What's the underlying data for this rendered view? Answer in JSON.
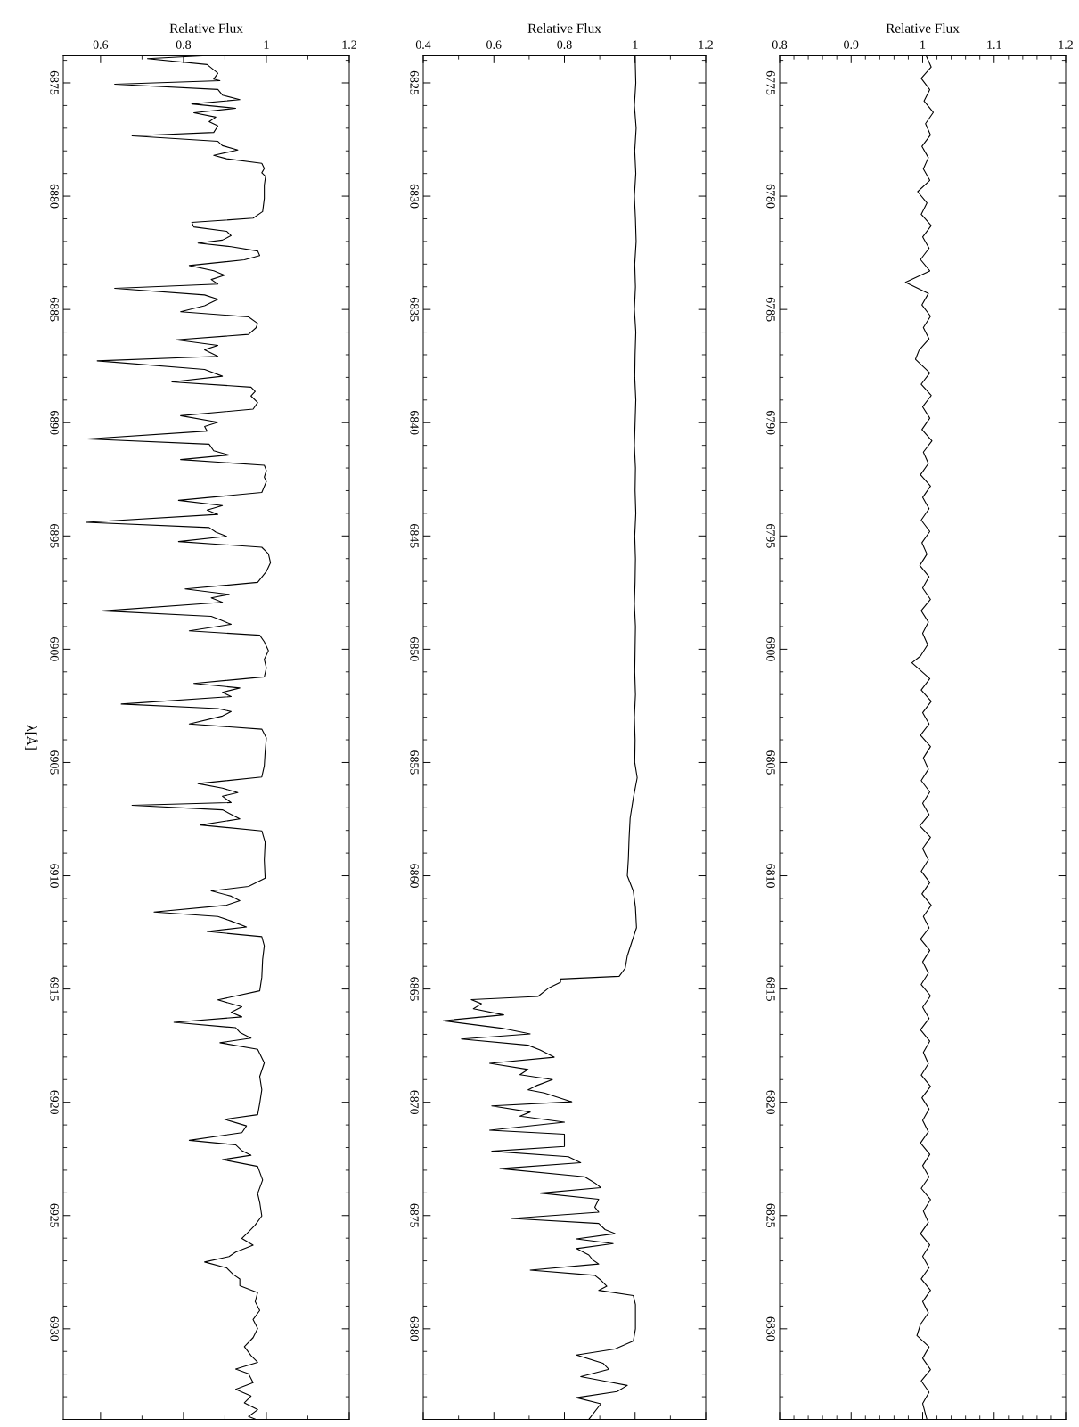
{
  "chart_data": [
    {
      "type": "line",
      "orientation": "horizontal",
      "xlabel": "Relative Flux",
      "ylabel": "λ[Å]",
      "xlim": [
        0.51,
        1.2
      ],
      "ylim": [
        6934,
        6873.8
      ],
      "xticks": [
        0.6,
        {
          "value": 0.7,
          "label": null
        },
        0.8,
        {
          "value": 0.9,
          "label": null
        },
        1,
        {
          "value": 1.1,
          "label": null
        },
        1.2
      ],
      "yticks": [
        {
          "value": 6874,
          "label": null
        },
        6875,
        {
          "value": 6876,
          "label": null
        },
        {
          "value": 6877,
          "label": null
        },
        {
          "value": 6878,
          "label": null
        },
        {
          "value": 6879,
          "label": null
        },
        6880,
        {
          "value": 6881,
          "label": null
        },
        {
          "value": 6882,
          "label": null
        },
        {
          "value": 6883,
          "label": null
        },
        {
          "value": 6884,
          "label": null
        },
        6885,
        {
          "value": 6886,
          "label": null
        },
        {
          "value": 6887,
          "label": null
        },
        {
          "value": 6888,
          "label": null
        },
        {
          "value": 6889,
          "label": null
        },
        6890,
        {
          "value": 6891,
          "label": null
        },
        {
          "value": 6892,
          "label": null
        },
        {
          "value": 6893,
          "label": null
        },
        {
          "value": 6894,
          "label": null
        },
        6895,
        {
          "value": 6896,
          "label": null
        },
        {
          "value": 6897,
          "label": null
        },
        {
          "value": 6898,
          "label": null
        },
        {
          "value": 6899,
          "label": null
        },
        6900,
        {
          "value": 6901,
          "label": null
        },
        {
          "value": 6902,
          "label": null
        },
        {
          "value": 6903,
          "label": null
        },
        {
          "value": 6904,
          "label": null
        },
        6905,
        {
          "value": 6906,
          "label": null
        },
        {
          "value": 6907,
          "label": null
        },
        {
          "value": 6908,
          "label": null
        },
        {
          "value": 6909,
          "label": null
        },
        6910,
        {
          "value": 6911,
          "label": null
        },
        {
          "value": 6912,
          "label": null
        },
        {
          "value": 6913,
          "label": null
        },
        {
          "value": 6914,
          "label": null
        },
        6915,
        {
          "value": 6916,
          "label": null
        },
        {
          "value": 6917,
          "label": null
        },
        {
          "value": 6918,
          "label": null
        },
        {
          "value": 6919,
          "label": null
        },
        6920,
        {
          "value": 6921,
          "label": null
        },
        {
          "value": 6922,
          "label": null
        },
        {
          "value": 6923,
          "label": null
        },
        {
          "value": 6924,
          "label": null
        },
        6925,
        {
          "value": 6926,
          "label": null
        },
        {
          "value": 6927,
          "label": null
        },
        {
          "value": 6928,
          "label": null
        },
        {
          "value": 6929,
          "label": null
        },
        6930,
        {
          "value": 6931,
          "label": null
        },
        {
          "value": 6932,
          "label": null
        },
        {
          "value": 6933,
          "label": null
        }
      ],
      "series": [
        {
          "color": "#000000",
          "x": [
            6873.8,
            6873.93,
            6874.19,
            6874.57,
            6874.83,
            6874.9,
            6875.06,
            6875.29,
            6875.54,
            6875.74,
            6875.93,
            6876.12,
            6876.32,
            6876.51,
            6876.71,
            6876.9,
            6877.19,
            6877.34,
            6877.58,
            6877.77,
            6877.96,
            6878.2,
            6878.35,
            6878.55,
            6878.78,
            6878.97,
            6879.13,
            6879.52,
            6880.1,
            6880.68,
            6880.97,
            6881.16,
            6881.36,
            6881.55,
            6881.74,
            6881.94,
            6882.07,
            6882.23,
            6882.42,
            6882.62,
            6882.81,
            6883.06,
            6883.29,
            6883.49,
            6883.68,
            6883.88,
            6884.07,
            6884.36,
            6884.55,
            6884.84,
            6885.1,
            6885.33,
            6885.62,
            6885.81,
            6886.1,
            6886.34,
            6886.59,
            6886.78,
            6887.07,
            6887.27,
            6887.65,
            6887.95,
            6888.2,
            6888.43,
            6888.62,
            6888.82,
            6889.11,
            6889.4,
            6889.69,
            6889.98,
            6890.17,
            6890.37,
            6890.72,
            6890.95,
            6891.24,
            6891.43,
            6891.63,
            6891.88,
            6892.11,
            6892.4,
            6892.6,
            6893.08,
            6893.43,
            6893.66,
            6893.86,
            6894.05,
            6894.4,
            6894.63,
            6894.83,
            6895.02,
            6895.25,
            6895.5,
            6895.79,
            6896.18,
            6896.57,
            6897.05,
            6897.34,
            6897.58,
            6897.73,
            6897.93,
            6898.31,
            6898.55,
            6898.7,
            6898.9,
            6899.19,
            6899.38,
            6899.67,
            6900.06,
            6900.45,
            6900.83,
            6901.22,
            6901.51,
            6901.71,
            6901.9,
            6902.09,
            6902.42,
            6902.62,
            6902.75,
            6902.95,
            6903.3,
            6903.53,
            6903.92,
            6904.54,
            6905.14,
            6905.64,
            6905.93,
            6906.13,
            6906.33,
            6906.49,
            6906.77,
            6906.89,
            6907.09,
            6907.29,
            6907.49,
            6907.76,
            6908.02,
            6908.52,
            6909.31,
            6910.11,
            6910.47,
            6910.67,
            6910.9,
            6911.1,
            6911.3,
            6911.6,
            6911.8,
            6912.0,
            6912.26,
            6912.46,
            6912.69,
            6913.09,
            6913.69,
            6914.48,
            6915.08,
            6915.48,
            6915.78,
            6916.03,
            6916.23,
            6916.47,
            6916.71,
            6916.91,
            6917.17,
            6917.37,
            6917.66,
            6918.26,
            6918.86,
            6919.45,
            6920.05,
            6920.55,
            6920.75,
            6921.04,
            6921.34,
            6921.68,
            6921.88,
            6922.14,
            6922.34,
            6922.53,
            6922.83,
            6923.43,
            6924.03,
            6924.42,
            6925.02,
            6925.42,
            6925.72,
            6926.01,
            6926.31,
            6926.61,
            6926.81,
            6927.05,
            6927.31,
            6927.6,
            6927.8,
            6928.1,
            6928.4,
            6928.8,
            6929.19,
            6929.59,
            6929.99,
            6930.39,
            6930.79,
            6931.18,
            6931.48,
            6931.78,
            6931.98,
            6932.38,
            6932.67,
            6932.97,
            6933.27,
            6933.57,
            6933.87,
            6934.0
          ],
          "values": [
            0.846,
            0.713,
            0.857,
            0.883,
            0.873,
            0.888,
            0.634,
            0.883,
            0.894,
            0.936,
            0.82,
            0.926,
            0.825,
            0.878,
            0.862,
            0.883,
            0.873,
            0.676,
            0.883,
            0.894,
            0.931,
            0.873,
            0.904,
            0.989,
            0.995,
            0.989,
            0.998,
            0.995,
            0.995,
            0.991,
            0.968,
            0.82,
            0.825,
            0.904,
            0.915,
            0.894,
            0.835,
            0.915,
            0.979,
            0.984,
            0.947,
            0.814,
            0.873,
            0.899,
            0.867,
            0.883,
            0.634,
            0.851,
            0.883,
            0.851,
            0.793,
            0.957,
            0.979,
            0.975,
            0.957,
            0.782,
            0.883,
            0.851,
            0.883,
            0.592,
            0.851,
            0.894,
            0.772,
            0.963,
            0.973,
            0.963,
            0.979,
            0.968,
            0.793,
            0.883,
            0.851,
            0.857,
            0.568,
            0.862,
            0.873,
            0.91,
            0.793,
            0.995,
            1.0,
            0.995,
            1.0,
            0.989,
            0.788,
            0.894,
            0.857,
            0.883,
            0.565,
            0.862,
            0.878,
            0.904,
            0.788,
            0.989,
            1.005,
            1.01,
            1.0,
            0.979,
            0.804,
            0.91,
            0.867,
            0.894,
            0.605,
            0.867,
            0.888,
            0.915,
            0.814,
            0.984,
            0.995,
            1.005,
            0.995,
            1.0,
            0.995,
            0.825,
            0.936,
            0.894,
            0.915,
            0.65,
            0.883,
            0.915,
            0.894,
            0.814,
            0.989,
            1.0,
            0.997,
            0.995,
            0.989,
            0.835,
            0.894,
            0.931,
            0.894,
            0.915,
            0.676,
            0.894,
            0.915,
            0.936,
            0.841,
            0.989,
            0.997,
            0.995,
            0.997,
            0.957,
            0.867,
            0.915,
            0.936,
            0.904,
            0.729,
            0.883,
            0.915,
            0.952,
            0.857,
            0.989,
            0.995,
            0.991,
            0.989,
            0.984,
            0.883,
            0.941,
            0.915,
            0.941,
            0.777,
            0.926,
            0.936,
            0.963,
            0.888,
            0.979,
            0.995,
            0.984,
            0.989,
            0.984,
            0.979,
            0.899,
            0.952,
            0.941,
            0.814,
            0.926,
            0.941,
            0.963,
            0.894,
            0.979,
            0.991,
            0.979,
            0.984,
            0.989,
            0.973,
            0.957,
            0.941,
            0.968,
            0.926,
            0.91,
            0.851,
            0.904,
            0.92,
            0.936,
            0.936,
            0.979,
            0.973,
            0.984,
            0.968,
            0.979,
            0.968,
            0.947,
            0.963,
            0.979,
            0.926,
            0.957,
            0.968,
            0.926,
            0.963,
            0.947,
            0.979,
            0.957,
            0.975
          ]
        }
      ]
    },
    {
      "type": "line",
      "orientation": "horizontal",
      "xlabel": "Relative Flux",
      "xlim": [
        0.4,
        1.2
      ],
      "ylim": [
        6884,
        6823.8
      ],
      "xticks": [
        0.4,
        {
          "value": 0.5,
          "label": null
        },
        0.6,
        {
          "value": 0.7,
          "label": null
        },
        0.8,
        {
          "value": 0.9,
          "label": null
        },
        1,
        {
          "value": 1.1,
          "label": null
        },
        1.2
      ],
      "yticks": [
        {
          "value": 6824,
          "label": null
        },
        6825,
        {
          "value": 6826,
          "label": null
        },
        {
          "value": 6827,
          "label": null
        },
        {
          "value": 6828,
          "label": null
        },
        {
          "value": 6829,
          "label": null
        },
        6830,
        {
          "value": 6831,
          "label": null
        },
        {
          "value": 6832,
          "label": null
        },
        {
          "value": 6833,
          "label": null
        },
        {
          "value": 6834,
          "label": null
        },
        6835,
        {
          "value": 6836,
          "label": null
        },
        {
          "value": 6837,
          "label": null
        },
        {
          "value": 6838,
          "label": null
        },
        {
          "value": 6839,
          "label": null
        },
        6840,
        {
          "value": 6841,
          "label": null
        },
        {
          "value": 6842,
          "label": null
        },
        {
          "value": 6843,
          "label": null
        },
        {
          "value": 6844,
          "label": null
        },
        6845,
        {
          "value": 6846,
          "label": null
        },
        {
          "value": 6847,
          "label": null
        },
        {
          "value": 6848,
          "label": null
        },
        {
          "value": 6849,
          "label": null
        },
        6850,
        {
          "value": 6851,
          "label": null
        },
        {
          "value": 6852,
          "label": null
        },
        {
          "value": 6853,
          "label": null
        },
        {
          "value": 6854,
          "label": null
        },
        6855,
        {
          "value": 6856,
          "label": null
        },
        {
          "value": 6857,
          "label": null
        },
        {
          "value": 6858,
          "label": null
        },
        {
          "value": 6859,
          "label": null
        },
        6860,
        {
          "value": 6861,
          "label": null
        },
        {
          "value": 6862,
          "label": null
        },
        {
          "value": 6863,
          "label": null
        },
        {
          "value": 6864,
          "label": null
        },
        6865,
        {
          "value": 6866,
          "label": null
        },
        {
          "value": 6867,
          "label": null
        },
        {
          "value": 6868,
          "label": null
        },
        {
          "value": 6869,
          "label": null
        },
        6870,
        {
          "value": 6871,
          "label": null
        },
        {
          "value": 6872,
          "label": null
        },
        {
          "value": 6873,
          "label": null
        },
        {
          "value": 6874,
          "label": null
        },
        6875,
        {
          "value": 6876,
          "label": null
        },
        {
          "value": 6877,
          "label": null
        },
        {
          "value": 6878,
          "label": null
        },
        {
          "value": 6879,
          "label": null
        },
        6880,
        {
          "value": 6881,
          "label": null
        },
        {
          "value": 6882,
          "label": null
        },
        {
          "value": 6883,
          "label": null
        }
      ],
      "series": [
        {
          "color": "#000000",
          "x": [
            6823.8,
            6825,
            6826,
            6827,
            6828,
            6829,
            6830,
            6831,
            6832,
            6833,
            6834,
            6835,
            6836,
            6837,
            6838,
            6839,
            6840,
            6841,
            6842,
            6843,
            6844,
            6845,
            6846,
            6847,
            6848,
            6849,
            6850,
            6851,
            6852,
            6853,
            6854,
            6855,
            6855.67,
            6856.57,
            6857.46,
            6858.35,
            6859.25,
            6860.0,
            6860.68,
            6861.4,
            6862.29,
            6863.01,
            6863.54,
            6864.08,
            6864.44,
            6864.56,
            6864.7,
            6864.97,
            6865.33,
            6865.47,
            6865.65,
            6865.87,
            6866.14,
            6866.4,
            6866.73,
            6866.98,
            6867.21,
            6867.48,
            6867.69,
            6868.01,
            6868.28,
            6868.55,
            6868.78,
            6869.0,
            6869.27,
            6869.45,
            6869.59,
            6869.98,
            6870.16,
            6870.43,
            6870.61,
            6870.88,
            6871.23,
            6871.41,
            6871.65,
            6871.95,
            6872.16,
            6872.4,
            6872.67,
            6872.93,
            6873.29,
            6873.56,
            6873.77,
            6874.01,
            6874.28,
            6874.63,
            6874.85,
            6875.13,
            6875.35,
            6875.62,
            6875.8,
            6876.03,
            6876.24,
            6876.46,
            6876.74,
            6876.96,
            6877.14,
            6877.41,
            6877.64,
            6877.85,
            6878.12,
            6878.3,
            6878.53,
            6878.93,
            6879.46,
            6880.0,
            6880.54,
            6880.89,
            6881.16,
            6881.52,
            6881.79,
            6882.11,
            6882.33,
            6882.5,
            6882.77,
            6883.04,
            6883.31,
            6884.0
          ],
          "values": [
            1.0,
            1.002,
            0.998,
            1.003,
            0.999,
            1.002,
            0.998,
            1.001,
            1.003,
            0.999,
            1.001,
            0.998,
            1.002,
            1.0,
            0.999,
            1.002,
            1.0,
            0.998,
            1.001,
            1.0,
            1.002,
            0.999,
            1.001,
            1.0,
            0.998,
            1.001,
            1.0,
            0.999,
            1.001,
            0.998,
            1.0,
            0.999,
            1.006,
            0.995,
            0.986,
            0.983,
            0.981,
            0.978,
            0.995,
            1.001,
            1.004,
            0.989,
            0.978,
            0.972,
            0.955,
            0.789,
            0.789,
            0.754,
            0.725,
            0.536,
            0.565,
            0.542,
            0.628,
            0.456,
            0.622,
            0.703,
            0.508,
            0.697,
            0.731,
            0.771,
            0.588,
            0.697,
            0.674,
            0.766,
            0.72,
            0.697,
            0.743,
            0.821,
            0.594,
            0.703,
            0.674,
            0.8,
            0.588,
            0.8,
            0.8,
            0.8,
            0.594,
            0.811,
            0.846,
            0.617,
            0.857,
            0.886,
            0.903,
            0.731,
            0.897,
            0.886,
            0.897,
            0.651,
            0.897,
            0.915,
            0.943,
            0.834,
            0.938,
            0.834,
            0.869,
            0.88,
            0.897,
            0.703,
            0.886,
            0.903,
            0.92,
            0.897,
            0.995,
            1.001,
            1.001,
            1.001,
            0.995,
            0.943,
            0.834,
            0.909,
            0.926,
            0.846,
            0.92,
            0.978,
            0.949,
            0.834,
            0.903,
            0.869
          ]
        }
      ]
    },
    {
      "type": "line",
      "orientation": "horizontal",
      "xlabel": "Relative Flux",
      "xlim": [
        0.8,
        1.2
      ],
      "ylim": [
        6834,
        6773.8
      ],
      "xticks": [
        0.8,
        {
          "value": 0.82,
          "label": null
        },
        {
          "value": 0.84,
          "label": null
        },
        {
          "value": 0.86,
          "label": null
        },
        {
          "value": 0.88,
          "label": null
        },
        0.9,
        {
          "value": 0.92,
          "label": null
        },
        {
          "value": 0.94,
          "label": null
        },
        {
          "value": 0.96,
          "label": null
        },
        {
          "value": 0.98,
          "label": null
        },
        1,
        {
          "value": 1.02,
          "label": null
        },
        {
          "value": 1.04,
          "label": null
        },
        {
          "value": 1.06,
          "label": null
        },
        {
          "value": 1.08,
          "label": null
        },
        1.1,
        {
          "value": 1.12,
          "label": null
        },
        {
          "value": 1.14,
          "label": null
        },
        {
          "value": 1.16,
          "label": null
        },
        {
          "value": 1.18,
          "label": null
        },
        1.2
      ],
      "yticks": [
        {
          "value": 6774,
          "label": null
        },
        6775,
        {
          "value": 6776,
          "label": null
        },
        {
          "value": 6777,
          "label": null
        },
        {
          "value": 6778,
          "label": null
        },
        {
          "value": 6779,
          "label": null
        },
        6780,
        {
          "value": 6781,
          "label": null
        },
        {
          "value": 6782,
          "label": null
        },
        {
          "value": 6783,
          "label": null
        },
        {
          "value": 6784,
          "label": null
        },
        6785,
        {
          "value": 6786,
          "label": null
        },
        {
          "value": 6787,
          "label": null
        },
        {
          "value": 6788,
          "label": null
        },
        {
          "value": 6789,
          "label": null
        },
        6790,
        {
          "value": 6791,
          "label": null
        },
        {
          "value": 6792,
          "label": null
        },
        {
          "value": 6793,
          "label": null
        },
        {
          "value": 6794,
          "label": null
        },
        6795,
        {
          "value": 6796,
          "label": null
        },
        {
          "value": 6797,
          "label": null
        },
        {
          "value": 6798,
          "label": null
        },
        {
          "value": 6799,
          "label": null
        },
        6800,
        {
          "value": 6801,
          "label": null
        },
        {
          "value": 6802,
          "label": null
        },
        {
          "value": 6803,
          "label": null
        },
        {
          "value": 6804,
          "label": null
        },
        6805,
        {
          "value": 6806,
          "label": null
        },
        {
          "value": 6807,
          "label": null
        },
        {
          "value": 6808,
          "label": null
        },
        {
          "value": 6809,
          "label": null
        },
        6810,
        {
          "value": 6811,
          "label": null
        },
        {
          "value": 6812,
          "label": null
        },
        {
          "value": 6813,
          "label": null
        },
        {
          "value": 6814,
          "label": null
        },
        6815,
        {
          "value": 6816,
          "label": null
        },
        {
          "value": 6817,
          "label": null
        },
        {
          "value": 6818,
          "label": null
        },
        {
          "value": 6819,
          "label": null
        },
        6820,
        {
          "value": 6821,
          "label": null
        },
        {
          "value": 6822,
          "label": null
        },
        {
          "value": 6823,
          "label": null
        },
        {
          "value": 6824,
          "label": null
        },
        6825,
        {
          "value": 6826,
          "label": null
        },
        {
          "value": 6827,
          "label": null
        },
        {
          "value": 6828,
          "label": null
        },
        {
          "value": 6829,
          "label": null
        },
        6830,
        {
          "value": 6831,
          "label": null
        },
        {
          "value": 6832,
          "label": null
        },
        {
          "value": 6833,
          "label": null
        }
      ],
      "series": [
        {
          "color": "#000000",
          "x": [
            6773.8,
            6774.3,
            6774.8,
            6775.3,
            6775.8,
            6776.3,
            6776.8,
            6777.3,
            6777.8,
            6778.3,
            6778.8,
            6779.3,
            6779.8,
            6780.3,
            6780.8,
            6781.3,
            6781.8,
            6782.3,
            6782.8,
            6783.3,
            6783.8,
            6784.3,
            6784.8,
            6785.3,
            6785.8,
            6786.3,
            6786.8,
            6787.2,
            6787.8,
            6788.3,
            6788.8,
            6789.3,
            6789.8,
            6790.3,
            6790.8,
            6791.3,
            6791.8,
            6792.3,
            6792.8,
            6793.3,
            6793.8,
            6794.3,
            6794.8,
            6795.3,
            6795.8,
            6796.3,
            6796.8,
            6797.3,
            6797.8,
            6798.3,
            6798.8,
            6799.3,
            6799.8,
            6800.3,
            6800.6,
            6801.3,
            6801.8,
            6802.3,
            6802.8,
            6803.3,
            6803.8,
            6804.3,
            6804.8,
            6805.3,
            6805.8,
            6806.3,
            6806.8,
            6807.3,
            6807.8,
            6808.3,
            6808.8,
            6809.3,
            6809.8,
            6810.3,
            6810.8,
            6811.3,
            6811.8,
            6812.3,
            6812.8,
            6813.3,
            6813.8,
            6814.3,
            6814.8,
            6815.3,
            6815.8,
            6816.3,
            6816.8,
            6817.3,
            6817.8,
            6818.3,
            6818.8,
            6819.3,
            6819.8,
            6820.3,
            6820.8,
            6821.3,
            6821.8,
            6822.3,
            6822.8,
            6823.3,
            6823.8,
            6824.3,
            6824.8,
            6825.3,
            6825.8,
            6826.3,
            6826.8,
            6827.3,
            6827.8,
            6828.3,
            6828.8,
            6829.3,
            6829.8,
            6830.3,
            6830.8,
            6831.3,
            6831.8,
            6832.3,
            6832.8,
            6833.3,
            6834.0
          ],
          "values": [
            1.005,
            1.012,
            0.998,
            1.01,
            1.002,
            1.015,
            1.004,
            1.011,
            0.999,
            1.008,
            1.001,
            1.01,
            0.993,
            1.006,
            0.998,
            1.012,
            1.0,
            1.009,
            0.997,
            1.01,
            0.976,
            1.008,
            0.999,
            1.011,
            1.001,
            1.009,
            0.995,
            0.99,
            1.01,
            0.998,
            1.012,
            1.0,
            1.01,
            0.999,
            1.013,
            1.001,
            1.008,
            0.997,
            1.011,
            1.0,
            1.009,
            0.998,
            1.01,
            0.999,
            1.006,
            0.996,
            1.009,
            1.0,
            1.011,
            0.998,
            1.008,
            1.0,
            1.007,
            0.997,
            0.985,
            1.01,
            0.998,
            1.012,
            1.0,
            1.009,
            0.997,
            1.011,
            1.001,
            1.008,
            0.998,
            1.01,
            1.0,
            1.009,
            0.996,
            1.011,
            1.0,
            1.008,
            0.998,
            1.01,
            0.999,
            1.012,
            1.001,
            1.009,
            0.997,
            1.01,
            1.0,
            1.008,
            0.998,
            1.011,
            1.0,
            1.009,
            0.997,
            1.01,
            1.001,
            1.008,
            0.998,
            1.011,
            0.999,
            1.009,
            1.0,
            1.008,
            0.997,
            1.01,
            1.0,
            1.009,
            0.998,
            1.011,
            1.001,
            1.008,
            0.997,
            1.01,
            1.0,
            1.009,
            0.998,
            1.011,
            1.0,
            1.008,
            0.997,
            0.992,
            1.009,
            1.0,
            1.011,
            0.998,
            1.009,
            1.0,
            1.006
          ]
        }
      ]
    }
  ]
}
